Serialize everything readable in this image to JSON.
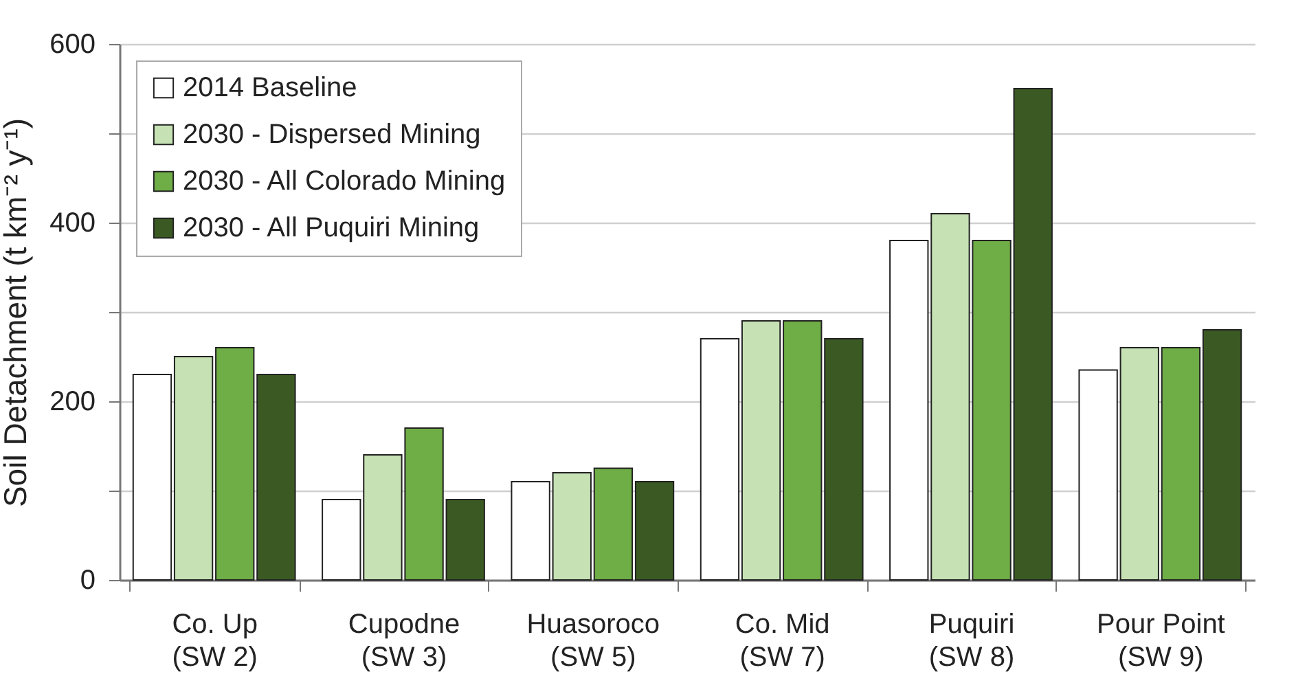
{
  "chart_data": {
    "type": "bar",
    "ylabel": "Soil Detachment (t km⁻² y⁻¹)",
    "categories": [
      "Co. Up\n(SW 2)",
      "Cupodne\n(SW 3)",
      "Huasoroco\n(SW 5)",
      "Co. Mid\n(SW 7)",
      "Puquiri\n(SW 8)",
      "Pour Point\n(SW 9)"
    ],
    "series": [
      {
        "name": "2014 Baseline",
        "color": "#ffffff",
        "values": [
          230,
          90,
          110,
          270,
          380,
          235
        ]
      },
      {
        "name": "2030 - Dispersed Mining",
        "color": "#c6e2b4",
        "values": [
          250,
          140,
          120,
          290,
          410,
          260
        ]
      },
      {
        "name": "2030 - All Colorado Mining",
        "color": "#6fad46",
        "values": [
          260,
          170,
          125,
          290,
          380,
          260
        ]
      },
      {
        "name": "2030 - All Puquiri Mining",
        "color": "#3b5a23",
        "values": [
          230,
          90,
          110,
          270,
          550,
          280
        ]
      }
    ],
    "ylim": [
      0,
      600
    ],
    "yticks": [
      0,
      {
        "value": 100,
        "label": null
      },
      200,
      {
        "value": 300,
        "label": null
      },
      400,
      {
        "value": 500,
        "label": null
      },
      600
    ],
    "grid": "y",
    "legend": "top left"
  }
}
